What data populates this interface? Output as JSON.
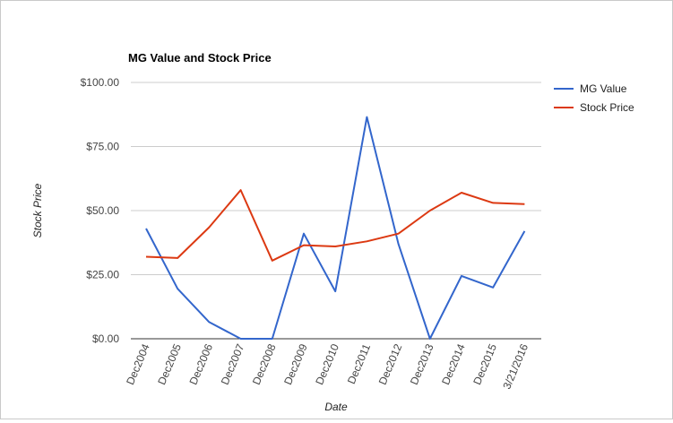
{
  "chart_data": {
    "type": "line",
    "title": "MG Value and Stock Price",
    "xlabel": "Date",
    "ylabel": "Stock Price",
    "categories": [
      "Dec2004",
      "Dec2005",
      "Dec2006",
      "Dec2007",
      "Dec2008",
      "Dec2009",
      "Dec2010",
      "Dec2011",
      "Dec2012",
      "Dec2013",
      "Dec2014",
      "Dec2015",
      "3/21/2016"
    ],
    "yticks": [
      "$0.00",
      "$25.00",
      "$50.00",
      "$75.00",
      "$100.00"
    ],
    "ylim": [
      0,
      100
    ],
    "grid": true,
    "legend_position": "right",
    "series": [
      {
        "name": "MG Value",
        "color": "#3366cc",
        "values": [
          43,
          19.5,
          6.5,
          0,
          0,
          41,
          18.5,
          86.5,
          37,
          0,
          24.5,
          20,
          42
        ]
      },
      {
        "name": "Stock Price",
        "color": "#dc3912",
        "values": [
          32,
          31.5,
          43.5,
          58,
          30.5,
          36.5,
          36,
          38,
          41,
          50,
          57,
          53,
          52.5
        ]
      }
    ]
  }
}
